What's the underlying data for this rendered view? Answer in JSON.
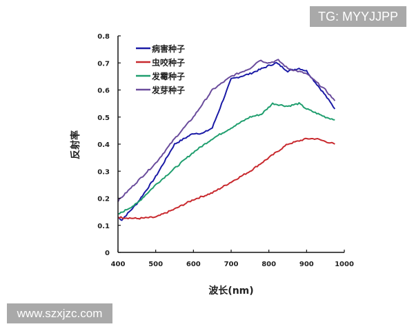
{
  "watermarks": {
    "top_right": "TG: MYYJJPP",
    "bottom_left": "www.szxjzc.com"
  },
  "chart_data": {
    "type": "line",
    "title": "",
    "xlabel": "波长(nm)",
    "ylabel": "反射率",
    "xlim": [
      400,
      1000
    ],
    "ylim": [
      0,
      0.8
    ],
    "xticks": [
      400,
      500,
      600,
      700,
      800,
      900,
      1000
    ],
    "yticks": [
      0,
      0.1,
      0.2,
      0.3,
      0.4,
      0.5,
      0.6,
      0.7,
      0.8
    ],
    "xtick_labels": [
      "400",
      "500",
      "600",
      "700",
      "800",
      "900",
      "1000"
    ],
    "ytick_labels": [
      "0",
      "0.1",
      "0.2",
      "0.3",
      "0.4",
      "0.5",
      "0.6",
      "0.7",
      "0.8"
    ],
    "grid": false,
    "legend_position": "upper-left",
    "series": [
      {
        "name": "病害种子",
        "color": "#1a1aa6",
        "x": [
          400,
          410,
          450,
          500,
          550,
          600,
          625,
          650,
          675,
          700,
          750,
          800,
          820,
          850,
          880,
          900,
          950,
          975
        ],
        "values": [
          0.13,
          0.12,
          0.18,
          0.28,
          0.4,
          0.44,
          0.44,
          0.46,
          0.55,
          0.64,
          0.66,
          0.69,
          0.7,
          0.67,
          0.68,
          0.67,
          0.58,
          0.53
        ]
      },
      {
        "name": "虫咬种子",
        "color": "#c8282d",
        "x": [
          400,
          450,
          500,
          550,
          600,
          650,
          700,
          750,
          800,
          850,
          900,
          925,
          950,
          975
        ],
        "values": [
          0.13,
          0.125,
          0.13,
          0.16,
          0.195,
          0.22,
          0.26,
          0.3,
          0.35,
          0.4,
          0.42,
          0.42,
          0.41,
          0.4
        ]
      },
      {
        "name": "发霉种子",
        "color": "#1f9e6e",
        "x": [
          400,
          450,
          500,
          550,
          600,
          650,
          700,
          750,
          780,
          810,
          850,
          880,
          900,
          950,
          975
        ],
        "values": [
          0.14,
          0.18,
          0.25,
          0.31,
          0.37,
          0.42,
          0.46,
          0.5,
          0.51,
          0.55,
          0.54,
          0.55,
          0.53,
          0.5,
          0.49
        ]
      },
      {
        "name": "发芽种子",
        "color": "#6a4c9c",
        "x": [
          400,
          450,
          500,
          550,
          600,
          650,
          700,
          750,
          775,
          800,
          825,
          850,
          900,
          950,
          975
        ],
        "values": [
          0.19,
          0.26,
          0.33,
          0.42,
          0.5,
          0.6,
          0.65,
          0.68,
          0.71,
          0.7,
          0.71,
          0.68,
          0.66,
          0.6,
          0.56
        ]
      }
    ]
  }
}
